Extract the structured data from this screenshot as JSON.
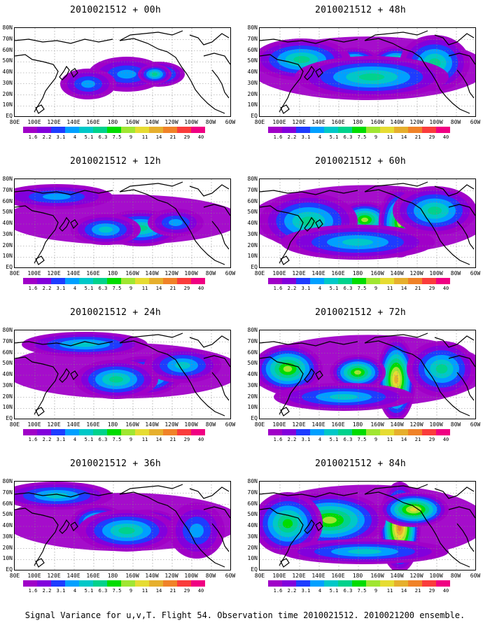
{
  "figure": {
    "caption": "Signal Variance for u,v,T. Flight 54. Observation time 2010021512. 2010021200 ensemble."
  },
  "axes": {
    "lat_labels": [
      "80N",
      "70N",
      "60N",
      "50N",
      "40N",
      "30N",
      "20N",
      "10N",
      "EQ"
    ],
    "lon_labels": [
      "80E",
      "100E",
      "120E",
      "140E",
      "160E",
      "180",
      "160W",
      "140W",
      "120W",
      "100W",
      "80W",
      "60W"
    ]
  },
  "colorbar": {
    "levels": [
      "1.6",
      "2.2",
      "3.1",
      "4",
      "5.1",
      "6.3",
      "7.5",
      "9",
      "11",
      "14",
      "21",
      "29",
      "40"
    ],
    "colors": [
      "#a000c8",
      "#8200dc",
      "#1e3cff",
      "#00a0ff",
      "#00c8c8",
      "#00d28c",
      "#00dc00",
      "#a0e632",
      "#e6dc32",
      "#e6af2d",
      "#f08228",
      "#fa3c3c",
      "#f00082"
    ]
  },
  "panels": [
    {
      "title": "2010021512 + 00h",
      "lead_hours": 0
    },
    {
      "title": "2010021512 + 48h",
      "lead_hours": 48
    },
    {
      "title": "2010021512 + 12h",
      "lead_hours": 12
    },
    {
      "title": "2010021512 + 60h",
      "lead_hours": 60
    },
    {
      "title": "2010021512 + 24h",
      "lead_hours": 24
    },
    {
      "title": "2010021512 + 72h",
      "lead_hours": 72
    },
    {
      "title": "2010021512 + 36h",
      "lead_hours": 36
    },
    {
      "title": "2010021512 + 84h",
      "lead_hours": 84
    }
  ]
}
